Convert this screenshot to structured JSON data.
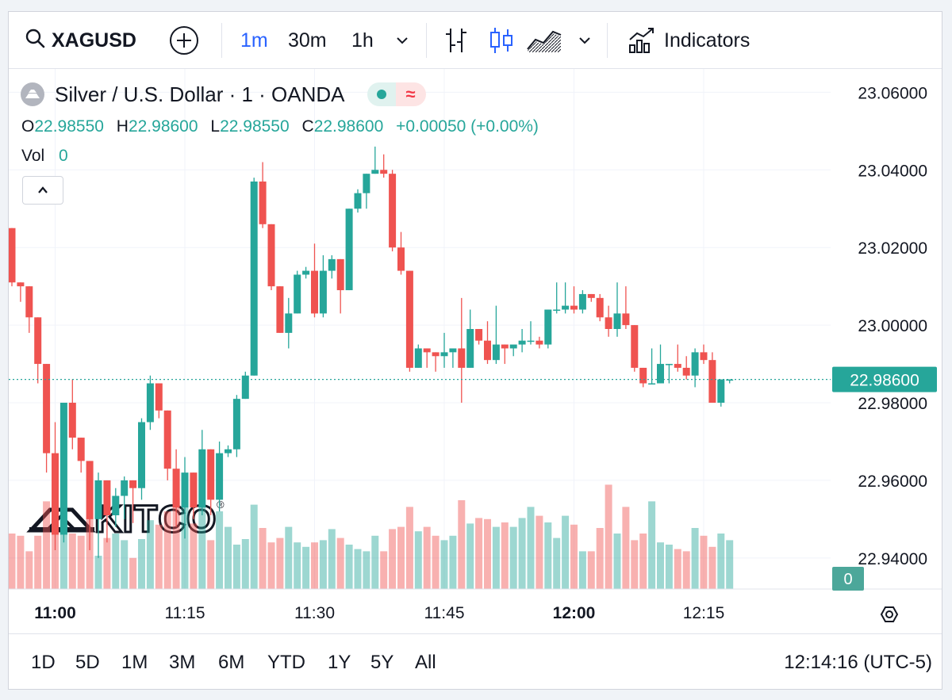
{
  "toolbar": {
    "symbol": "XAGUSD",
    "intervals": [
      "1m",
      "30m",
      "1h"
    ],
    "active_interval": "1m",
    "indicators_label": "Indicators",
    "icons": [
      "search-icon",
      "add-symbol-icon",
      "chevron-down-icon",
      "bar-style-icon",
      "candle-style-icon",
      "area-style-icon",
      "chevron-down-icon",
      "indicators-icon"
    ]
  },
  "legend": {
    "title": "Silver / U.S. Dollar · 1 · OANDA",
    "o_label": "O",
    "o_value": "22.98550",
    "h_label": "H",
    "h_value": "22.98600",
    "l_label": "L",
    "l_value": "22.98550",
    "c_label": "C",
    "c_value": "22.98600",
    "change": "+0.00050 (+0.00%)",
    "vol_label": "Vol",
    "vol_value": "0",
    "collapse_icon": "chevron-up-icon"
  },
  "watermark": {
    "text": "KITCO",
    "mark": "®"
  },
  "bottom": {
    "ranges": [
      "1D",
      "5D",
      "1M",
      "3M",
      "6M",
      "YTD",
      "1Y",
      "5Y",
      "All"
    ],
    "clock": "12:14:16 (UTC-5)",
    "settings_icon": "settings-icon"
  },
  "colors": {
    "up": "#26a69a",
    "down": "#ef5350",
    "accent": "#2962ff"
  },
  "chart_data": {
    "type": "candlestick",
    "title": "Silver / U.S. Dollar · 1 · OANDA",
    "xlabel": "",
    "ylabel": "",
    "ylim": [
      22.932,
      23.066
    ],
    "y_ticks": [
      "23.06000",
      "23.04000",
      "23.02000",
      "23.00000",
      "22.98000",
      "22.96000",
      "22.94000"
    ],
    "x_ticks": [
      {
        "t": 5,
        "label": "11:00",
        "bold": true
      },
      {
        "t": 20,
        "label": "11:15",
        "bold": false
      },
      {
        "t": 35,
        "label": "11:30",
        "bold": false
      },
      {
        "t": 50,
        "label": "11:45",
        "bold": false
      },
      {
        "t": 65,
        "label": "12:00",
        "bold": true
      },
      {
        "t": 80,
        "label": "12:15",
        "bold": false
      }
    ],
    "last_price": "22.98600",
    "last_volume": "0",
    "series": [
      {
        "name": "price",
        "ohlc": [
          [
            23.025,
            23.025,
            23.01,
            23.011
          ],
          [
            23.011,
            23.011,
            23.006,
            23.01
          ],
          [
            23.01,
            23.01,
            22.998,
            23.002
          ],
          [
            23.002,
            23.002,
            22.985,
            22.99
          ],
          [
            22.99,
            22.99,
            22.962,
            22.967
          ],
          [
            22.967,
            22.975,
            22.942,
            22.946
          ],
          [
            22.946,
            22.98,
            22.944,
            22.98
          ],
          [
            22.98,
            22.986,
            22.968,
            22.971
          ],
          [
            22.971,
            22.971,
            22.962,
            22.965
          ],
          [
            22.965,
            22.965,
            22.942,
            22.95
          ],
          [
            22.95,
            22.962,
            22.94,
            22.96
          ],
          [
            22.96,
            22.96,
            22.944,
            22.951
          ],
          [
            22.951,
            22.958,
            22.948,
            22.956
          ],
          [
            22.956,
            22.961,
            22.95,
            22.96
          ],
          [
            22.96,
            22.96,
            22.949,
            22.958
          ],
          [
            22.958,
            22.976,
            22.955,
            22.975
          ],
          [
            22.975,
            22.987,
            22.973,
            22.985
          ],
          [
            22.985,
            22.985,
            22.976,
            22.978
          ],
          [
            22.978,
            22.978,
            22.96,
            22.963
          ],
          [
            22.963,
            22.968,
            22.948,
            22.953
          ],
          [
            22.953,
            22.966,
            22.945,
            22.962
          ],
          [
            22.962,
            22.962,
            22.95,
            22.953
          ],
          [
            22.953,
            22.973,
            22.951,
            22.968
          ],
          [
            22.968,
            22.968,
            22.951,
            22.955
          ],
          [
            22.955,
            22.97,
            22.952,
            22.967
          ],
          [
            22.967,
            22.969,
            22.966,
            22.968
          ],
          [
            22.968,
            22.982,
            22.966,
            22.981
          ],
          [
            22.981,
            22.988,
            22.981,
            22.987
          ],
          [
            22.987,
            23.038,
            22.987,
            23.037
          ],
          [
            23.037,
            23.042,
            23.025,
            23.026
          ],
          [
            23.026,
            23.026,
            23.009,
            23.01
          ],
          [
            23.01,
            23.01,
            22.998,
            22.998
          ],
          [
            22.998,
            23.007,
            22.994,
            23.003
          ],
          [
            23.003,
            23.014,
            23.003,
            23.013
          ],
          [
            23.013,
            23.015,
            23.012,
            23.014
          ],
          [
            23.014,
            23.021,
            23.002,
            23.003
          ],
          [
            23.003,
            23.018,
            23.002,
            23.014
          ],
          [
            23.014,
            23.018,
            23.012,
            23.017
          ],
          [
            23.017,
            23.017,
            23.003,
            23.009
          ],
          [
            23.009,
            23.03,
            23.009,
            23.03
          ],
          [
            23.03,
            23.035,
            23.029,
            23.034
          ],
          [
            23.034,
            23.039,
            23.03,
            23.039
          ],
          [
            23.039,
            23.046,
            23.039,
            23.04
          ],
          [
            23.04,
            23.044,
            23.038,
            23.039
          ],
          [
            23.039,
            23.04,
            23.019,
            23.02
          ],
          [
            23.02,
            23.024,
            23.013,
            23.014
          ],
          [
            23.014,
            23.014,
            22.988,
            22.989
          ],
          [
            22.989,
            22.995,
            22.989,
            22.994
          ],
          [
            22.994,
            22.994,
            22.989,
            22.993
          ],
          [
            22.993,
            22.993,
            22.988,
            22.992
          ],
          [
            22.992,
            22.998,
            22.989,
            22.993
          ],
          [
            22.993,
            22.993,
            22.989,
            22.994
          ],
          [
            22.994,
            23.007,
            22.98,
            22.989
          ],
          [
            22.989,
            23.004,
            22.989,
            22.999
          ],
          [
            22.999,
            22.999,
            22.995,
            22.996
          ],
          [
            22.996,
            23.001,
            22.99,
            22.991
          ],
          [
            22.991,
            23.005,
            22.99,
            22.995
          ],
          [
            22.995,
            22.995,
            22.99,
            22.994
          ],
          [
            22.994,
            22.994,
            22.992,
            22.995
          ],
          [
            22.995,
            22.999,
            22.993,
            22.996
          ],
          [
            22.996,
            23.001,
            22.995,
            22.996
          ],
          [
            22.996,
            22.997,
            22.994,
            22.995
          ],
          [
            22.995,
            23.004,
            22.994,
            23.004
          ],
          [
            23.004,
            23.011,
            23.003,
            23.004
          ],
          [
            23.004,
            23.011,
            23.003,
            23.005
          ],
          [
            23.005,
            23.01,
            23.003,
            23.004
          ],
          [
            23.004,
            23.009,
            23.003,
            23.008
          ],
          [
            23.008,
            23.008,
            23.006,
            23.007
          ],
          [
            23.007,
            23.008,
            23.001,
            23.002
          ],
          [
            23.002,
            23.005,
            22.997,
            22.999
          ],
          [
            22.999,
            23.011,
            22.997,
            23.003
          ],
          [
            23.003,
            23.01,
            22.999,
            23.0
          ],
          [
            23.0,
            23.0,
            22.988,
            22.989
          ],
          [
            22.989,
            22.989,
            22.984,
            22.985
          ],
          [
            22.985,
            22.994,
            22.985,
            22.985
          ],
          [
            22.985,
            22.995,
            22.985,
            22.99
          ],
          [
            22.99,
            22.99,
            22.985,
            22.99
          ],
          [
            22.99,
            22.995,
            22.988,
            22.989
          ],
          [
            22.989,
            22.992,
            22.986,
            22.987
          ],
          [
            22.987,
            22.994,
            22.984,
            22.993
          ],
          [
            22.993,
            22.995,
            22.99,
            22.991
          ],
          [
            22.991,
            22.993,
            22.98,
            22.98
          ],
          [
            22.98,
            22.986,
            22.979,
            22.986
          ],
          [
            22.986,
            22.986,
            22.985,
            22.986
          ]
        ]
      },
      {
        "name": "volume",
        "values": [
          0.5,
          0.48,
          0.34,
          0.48,
          0.79,
          0.66,
          0.56,
          0.5,
          0.48,
          0.64,
          0.3,
          0.46,
          0.5,
          0.44,
          0.28,
          0.45,
          0.62,
          0.58,
          0.7,
          0.82,
          0.79,
          0.59,
          0.74,
          0.44,
          0.7,
          0.56,
          0.4,
          0.45,
          0.76,
          0.55,
          0.42,
          0.46,
          0.56,
          0.42,
          0.38,
          0.42,
          0.44,
          0.54,
          0.46,
          0.4,
          0.36,
          0.34,
          0.48,
          0.34,
          0.54,
          0.56,
          0.74,
          0.52,
          0.56,
          0.48,
          0.44,
          0.48,
          0.8,
          0.59,
          0.64,
          0.63,
          0.56,
          0.6,
          0.56,
          0.64,
          0.74,
          0.66,
          0.6,
          0.46,
          0.66,
          0.58,
          0.34,
          0.34,
          0.55,
          0.94,
          0.5,
          0.74,
          0.44,
          0.5,
          0.79,
          0.42,
          0.4,
          0.36,
          0.34,
          0.55,
          0.48,
          0.38,
          0.5,
          0.44
        ]
      }
    ]
  }
}
